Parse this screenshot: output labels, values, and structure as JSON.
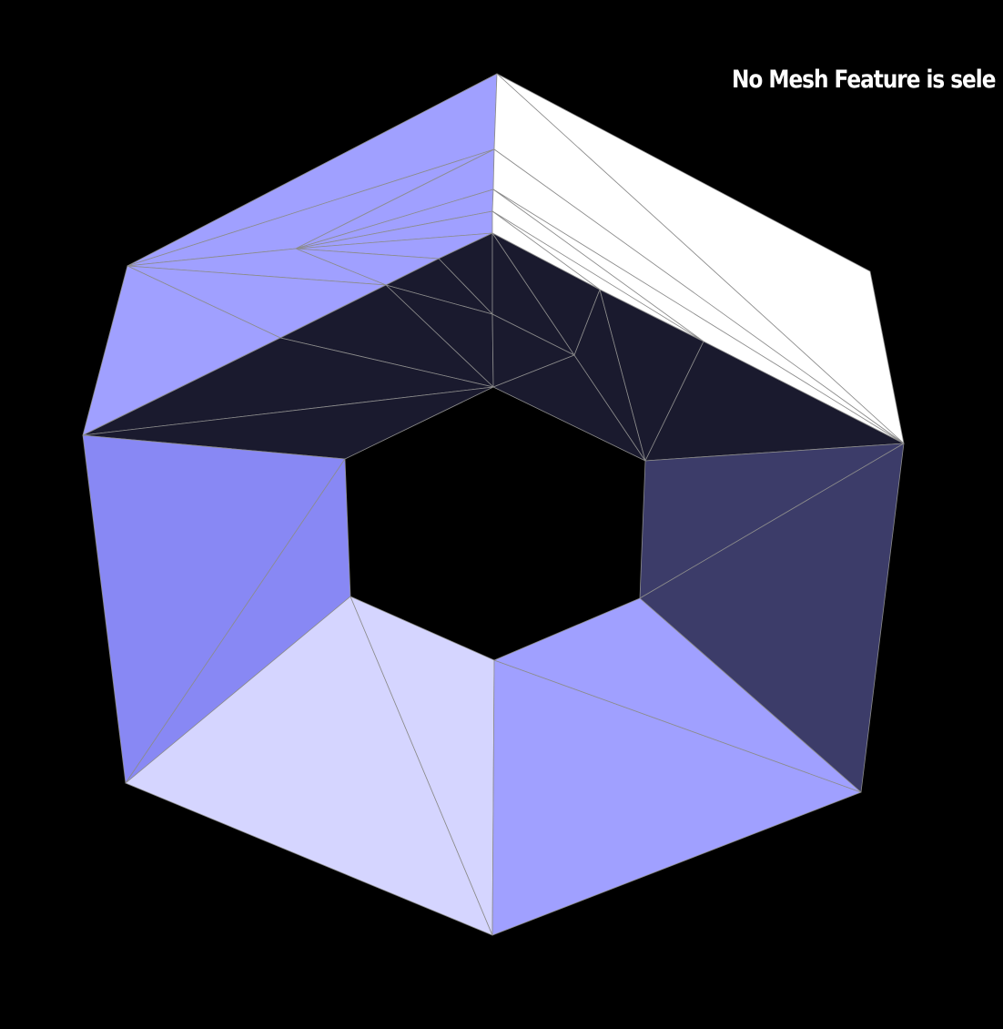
{
  "status": {
    "text": "No Mesh Feature is sele"
  },
  "viewport": {
    "background": "#000000",
    "edge_color": "#8c8c8c"
  },
  "shading": {
    "top_left_outer": "#a0a0ff",
    "top_right_outer": "#ffffff",
    "inner_top": "#1a1a2e",
    "left_wall": "#8888f4",
    "right_wall": "#3c3c69",
    "bottom_left": "#d5d5ff",
    "bottom_right": "#a0a0ff"
  }
}
